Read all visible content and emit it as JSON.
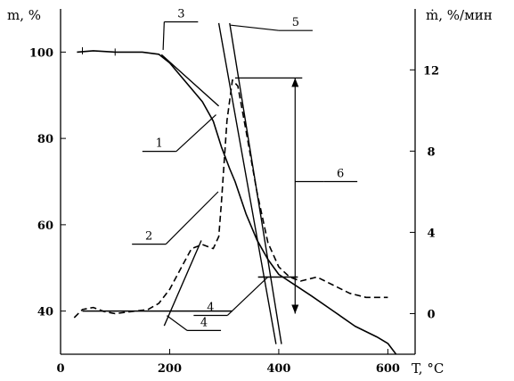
{
  "chart_data": {
    "type": "line",
    "title": "",
    "xlabel": "T, °C",
    "ylabel_left": "m, %",
    "ylabel_right": "ṁ, %/мин",
    "xlim": [
      0,
      650
    ],
    "ylim_left": [
      30,
      110
    ],
    "ylim_right": [
      -2,
      15
    ],
    "grid": false,
    "legend": "none",
    "x_ticks": [
      {
        "value": 0,
        "label": "0"
      },
      {
        "value": 200,
        "label": "200"
      },
      {
        "value": 400,
        "label": "400"
      },
      {
        "value": 600,
        "label": "600"
      }
    ],
    "y_left_ticks": [
      {
        "value": 40,
        "label": "40"
      },
      {
        "value": 60,
        "label": "60"
      },
      {
        "value": 80,
        "label": "80"
      },
      {
        "value": 100,
        "label": "100"
      }
    ],
    "y_right_ticks": [
      {
        "value": 0,
        "label": "0"
      },
      {
        "value": 4,
        "label": "4"
      },
      {
        "value": 8,
        "label": "8"
      },
      {
        "value": 12,
        "label": "12"
      }
    ],
    "series": [
      {
        "axis": "left",
        "style": "solid",
        "x": [
          30,
          60,
          100,
          150,
          180,
          200,
          220,
          240,
          260,
          280,
          295,
          310,
          320,
          340,
          360,
          380,
          400,
          430,
          460,
          500,
          540,
          580,
          600,
          615
        ],
        "y": [
          100,
          100.3,
          100,
          100,
          99.5,
          97.5,
          94.5,
          91.5,
          88.5,
          84,
          78,
          73,
          70,
          62.5,
          56.5,
          52,
          48.5,
          46,
          43.5,
          40,
          36.5,
          34,
          32.5,
          30
        ]
      },
      {
        "axis": "right",
        "style": "dashed",
        "x": [
          25,
          40,
          60,
          80,
          100,
          130,
          160,
          180,
          200,
          220,
          240,
          260,
          280,
          290,
          295,
          305,
          315,
          325,
          340,
          360,
          380,
          400,
          420,
          440,
          470,
          500,
          530,
          560,
          600
        ],
        "y": [
          -0.2,
          0.2,
          0.3,
          0.1,
          0,
          0.1,
          0.2,
          0.5,
          1.2,
          2.2,
          3.2,
          3.4,
          3.2,
          3.8,
          5.5,
          9.5,
          11.5,
          11.2,
          9,
          6,
          3.5,
          2.3,
          1.8,
          1.6,
          1.8,
          1.4,
          1.0,
          0.8,
          0.8
        ]
      }
    ],
    "tangent_lines": [
      {
        "axis": "left",
        "from": [
          185,
          99.4
        ],
        "to": [
          290,
          87.5
        ]
      },
      {
        "axis": "right",
        "from": [
          310,
          14.3
        ],
        "to": [
          405,
          -1.5
        ]
      },
      {
        "axis": "right",
        "from": [
          290,
          14.3
        ],
        "to": [
          395,
          -1.5
        ]
      },
      {
        "axis": "right",
        "from": [
          190,
          -0.6
        ],
        "to": [
          258,
          3.6
        ]
      },
      {
        "axis": "left",
        "from": [
          40,
          40
        ],
        "to": [
          315,
          40
        ]
      },
      {
        "axis": "right",
        "from": [
          362,
          1.8
        ],
        "to": [
          435,
          1.8
        ]
      }
    ],
    "peak_marker": {
      "axis": "right",
      "x": 430,
      "from": 0,
      "to": 11.6,
      "top_ref_from_x": 320
    },
    "annotations": [
      {
        "text": "1",
        "target_axis": "left",
        "target": [
          285,
          85.5
        ],
        "elbow_x": 212,
        "label_y": 77
      },
      {
        "text": "2",
        "target_axis": "right",
        "target": [
          289,
          6.0
        ],
        "elbow_x": 193,
        "label_y": 55.5
      },
      {
        "text": "3",
        "target_axis": "left",
        "target": [
          188,
          100.5
        ],
        "elbow_x": 190,
        "label_y": 107
      },
      {
        "text": "4",
        "target_axis": "right",
        "target": [
          195,
          -0.1
        ],
        "elbow_x": 232,
        "label_y": 35.5
      },
      {
        "text": "4",
        "target_axis": "right",
        "target": [
          380,
          1.8
        ],
        "elbow_x": 306,
        "label_y": 39
      },
      {
        "text": "5",
        "target_axis": "right",
        "target": [
          312,
          14.2
        ],
        "elbow_x": 400,
        "label_y": 105
      },
      {
        "text": "6",
        "target_axis": "right",
        "target": [
          430,
          6.5
        ],
        "elbow_x": 482,
        "label_y": 70
      }
    ]
  }
}
